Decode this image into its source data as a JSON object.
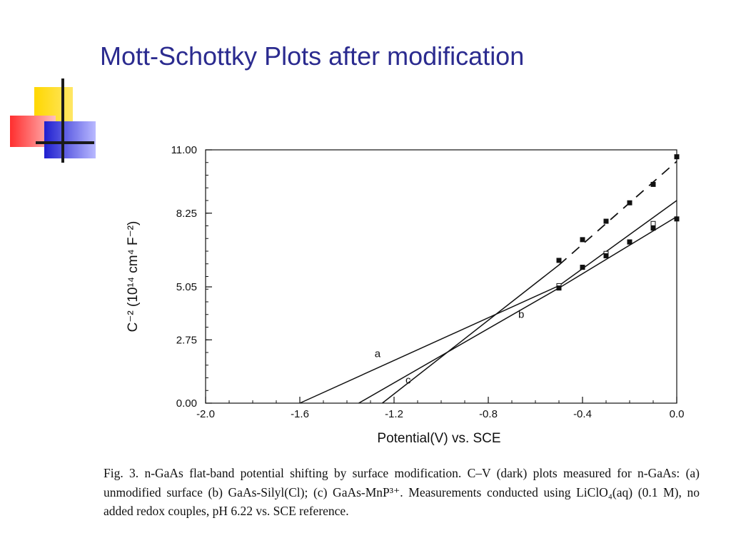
{
  "slide": {
    "title": "Mott-Schottky Plots after modification"
  },
  "caption": {
    "fig": "Fig. 3.",
    "text": "n-GaAs flat-band potential shifting by surface modification. C–V (dark) plots measured for n-GaAs: (a) unmodified surface (b) GaAs-Silyl(Cl); (c) GaAs-MnP³⁺. Measurements conducted using LiClO₄(aq) (0.1 M), no added redox couples, pH 6.22 vs. SCE reference."
  },
  "chart_data": {
    "type": "line",
    "xlabel": "Potential(V) vs. SCE",
    "ylabel": "C⁻² (10¹⁴ cm⁴ F⁻²)",
    "xlim": [
      -2.0,
      0.0
    ],
    "ylim": [
      0.0,
      11.0
    ],
    "xticks": [
      "-2.0",
      "-1.6",
      "-1.2",
      "-0.8",
      "-0.4",
      "0.0"
    ],
    "yticks": [
      "0.00",
      "2.75",
      "5.05",
      "8.25",
      "11.00"
    ],
    "ytick_values": [
      0.0,
      2.75,
      5.05,
      8.25,
      11.0
    ],
    "series": [
      {
        "name": "a",
        "fit_line": [
          [
            -1.6,
            0.0
          ],
          [
            -0.5,
            5.1
          ],
          [
            0.0,
            8.8
          ]
        ],
        "points": [
          [
            -0.5,
            5.1
          ],
          [
            -0.4,
            5.9
          ],
          [
            -0.3,
            6.5
          ],
          [
            -0.2,
            7.0
          ],
          [
            -0.1,
            7.8
          ]
        ]
      },
      {
        "name": "b",
        "fit_line": [
          [
            -1.35,
            0.0
          ],
          [
            -0.5,
            5.0
          ],
          [
            0.0,
            8.1
          ]
        ],
        "points": [
          [
            -0.5,
            5.0
          ],
          [
            -0.4,
            5.9
          ],
          [
            -0.3,
            6.4
          ],
          [
            -0.2,
            7.0
          ],
          [
            -0.1,
            7.6
          ],
          [
            0.0,
            8.0
          ]
        ]
      },
      {
        "name": "c",
        "fit_line": [
          [
            -1.25,
            0.0
          ],
          [
            -0.5,
            6.0
          ]
        ],
        "dashed_line": [
          [
            -0.5,
            6.0
          ],
          [
            0.0,
            10.5
          ]
        ],
        "points": [
          [
            -0.5,
            6.2
          ],
          [
            -0.4,
            7.1
          ],
          [
            -0.3,
            7.9
          ],
          [
            -0.2,
            8.7
          ],
          [
            -0.1,
            9.5
          ],
          [
            0.0,
            10.7
          ]
        ]
      }
    ],
    "labels": [
      {
        "text": "a",
        "x": -1.27,
        "y": 2.0
      },
      {
        "text": "b",
        "x": -0.66,
        "y": 3.7
      },
      {
        "text": "c",
        "x": -1.14,
        "y": 0.85
      }
    ],
    "grid": false
  }
}
